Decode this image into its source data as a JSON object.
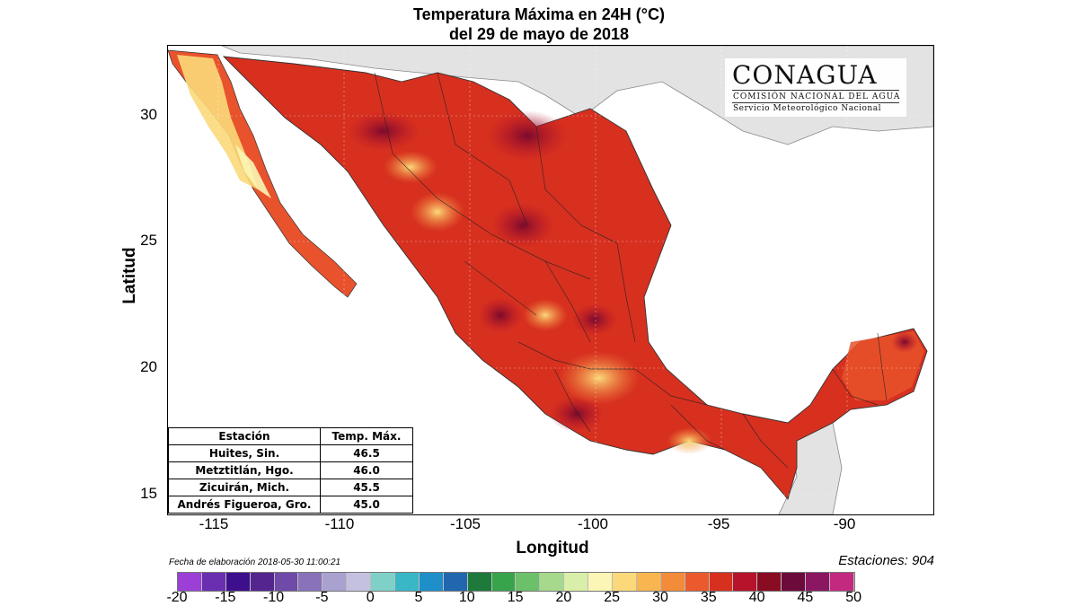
{
  "title": {
    "line1": "Temperatura Máxima en 24H (°C)",
    "line2": "del  29 de mayo de 2018"
  },
  "logo": {
    "name": "CONAGUA",
    "subtitle": "COMISIÓN NACIONAL DEL AGUA",
    "subtitle2": "Servicio Meteorológico Nacional"
  },
  "axes": {
    "xlabel": "Longitud",
    "ylabel": "Latitud",
    "xticks": [
      "-115",
      "-110",
      "-105",
      "-100",
      "-95",
      "-90"
    ],
    "yticks": [
      "30",
      "25",
      "20",
      "15"
    ]
  },
  "fecha": "Fecha de elaboración 2018-05-30 11:00:21",
  "estaciones": "Estaciones:  904",
  "stations_table": {
    "headers": [
      "Estación",
      "Temp. Máx."
    ],
    "rows": [
      [
        "Huites, Sin.",
        "46.5"
      ],
      [
        "Metztitlán, Hgo.",
        "46.0"
      ],
      [
        "Zicuirán, Mich.",
        "45.5"
      ],
      [
        "Andrés Figueroa, Gro.",
        "45.0"
      ]
    ]
  },
  "colorbar": {
    "labels": [
      "-20",
      "-15",
      "-10",
      "-5",
      "0",
      "5",
      "10",
      "15",
      "20",
      "25",
      "30",
      "35",
      "40",
      "45",
      "50"
    ],
    "colors": [
      "#9b3fd6",
      "#6a2fb0",
      "#3d0f8c",
      "#55258f",
      "#6f4aa8",
      "#8a72bb",
      "#a9a1d0",
      "#c4c1e0",
      "#7fd1c8",
      "#39b7c7",
      "#1f8fc9",
      "#2167b0",
      "#1e7a3a",
      "#37a34a",
      "#6cc06a",
      "#a6d98c",
      "#d9eea8",
      "#fbf6b5",
      "#fbd97a",
      "#f8b550",
      "#f28c3a",
      "#eb5a2c",
      "#d7301f",
      "#b7132a",
      "#8a0c22",
      "#6d0a3c",
      "#8b1763",
      "#c2297f"
    ]
  },
  "colors": {
    "land_base": "#d7301f",
    "sea": "#ffffff",
    "outside": "#e6e6e6"
  }
}
